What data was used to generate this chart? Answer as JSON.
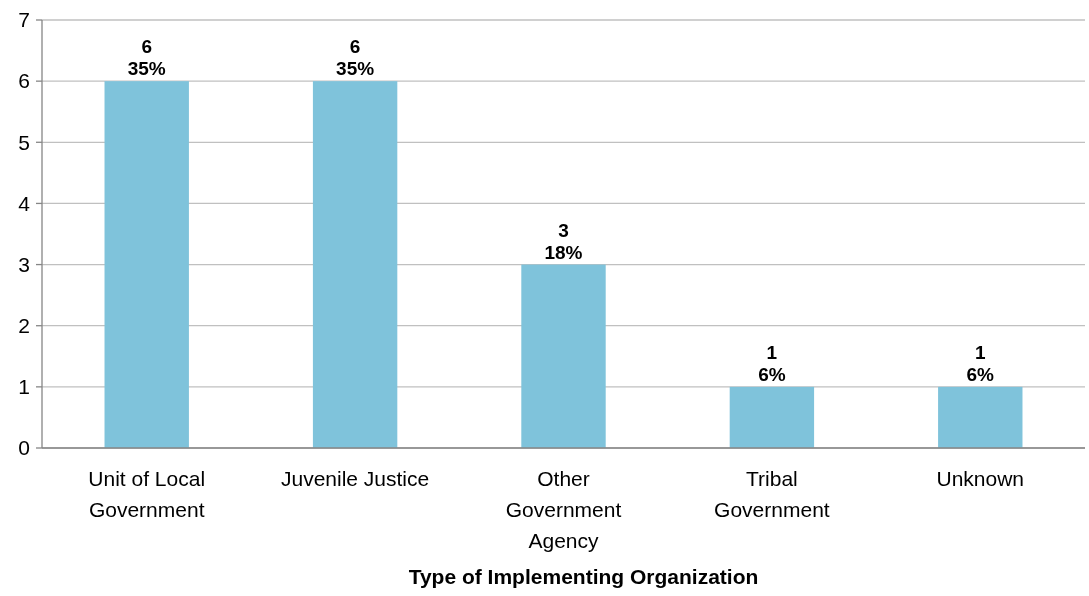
{
  "chart_data": {
    "type": "bar",
    "xlabel": "Type of Implementing Organization",
    "categories": [
      "Unit of Local Government",
      "Juvenile Justice",
      "Other Government Agency",
      "Tribal Government",
      "Unknown"
    ],
    "values": [
      6,
      6,
      3,
      1,
      1
    ],
    "value_labels": [
      "6\n35%",
      "6\n35%",
      "3\n18%",
      "1\n6%",
      "1\n6%"
    ],
    "color": "#7fc3db",
    "ylim": [
      0,
      7
    ],
    "yticks": [
      0,
      1,
      2,
      3,
      4,
      5,
      6,
      7
    ],
    "grid": "y"
  }
}
